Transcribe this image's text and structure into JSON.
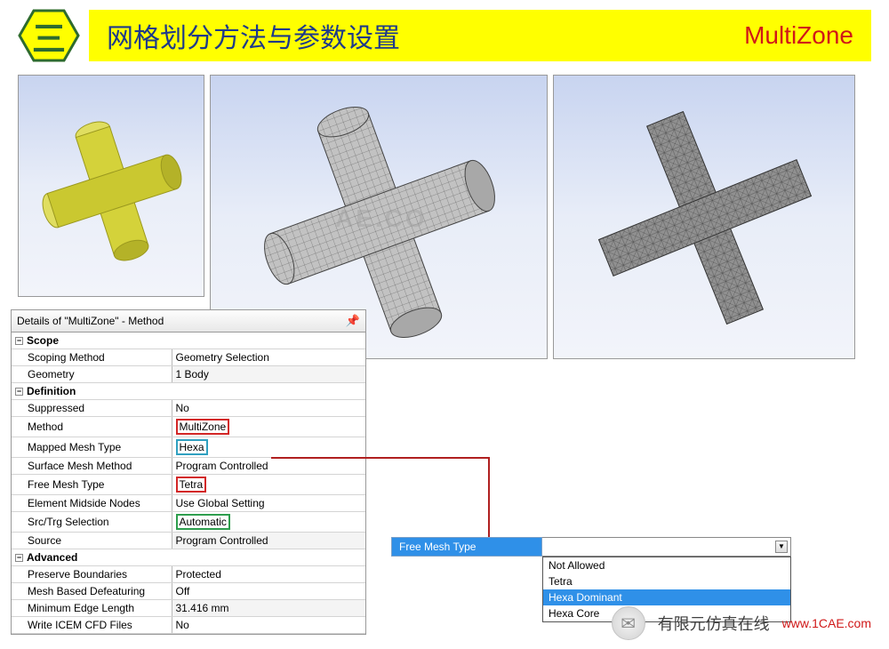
{
  "header": {
    "section_number": "三",
    "title": "网格划分方法与参数设置",
    "right_label": "MultiZone",
    "hex_fill": "#ffff00",
    "hex_stroke": "#2e6b2e",
    "title_bg": "#ffff00",
    "title_color": "#1e3a8a",
    "right_color": "#d01818"
  },
  "images": {
    "panel1": {
      "bg_top": "#c8d4f0",
      "bg_bot": "#f2f4fa",
      "shape_color": "#d4d23a"
    },
    "panel2": {
      "bg_top": "#c8d4f0",
      "bg_bot": "#f2f4fa",
      "shape_color": "#b8b8b8",
      "watermark": "AE.CO"
    },
    "panel3": {
      "bg_top": "#c8d4f0",
      "bg_bot": "#f2f4fa",
      "shape_color": "#8a8a8a"
    }
  },
  "details": {
    "title": "Details of \"MultiZone\" - Method",
    "sections": [
      {
        "name": "Scope",
        "rows": [
          {
            "label": "Scoping Method",
            "value": "Geometry Selection"
          },
          {
            "label": "Geometry",
            "value": "1 Body",
            "gray": true
          }
        ]
      },
      {
        "name": "Definition",
        "rows": [
          {
            "label": "Suppressed",
            "value": "No"
          },
          {
            "label": "Method",
            "value": "MultiZone",
            "hl": "red"
          },
          {
            "label": "Mapped Mesh Type",
            "value": "Hexa",
            "hl": "cyan"
          },
          {
            "label": "Surface Mesh Method",
            "value": "Program Controlled"
          },
          {
            "label": "Free Mesh Type",
            "value": "Tetra",
            "hl": "red"
          },
          {
            "label": "Element Midside Nodes",
            "value": "Use Global Setting"
          },
          {
            "label": "Src/Trg Selection",
            "value": "Automatic",
            "hl": "green"
          },
          {
            "label": "Source",
            "value": "Program Controlled",
            "gray": true
          }
        ]
      },
      {
        "name": "Advanced",
        "rows": [
          {
            "label": "Preserve Boundaries",
            "value": "Protected"
          },
          {
            "label": "Mesh Based Defeaturing",
            "value": "Off"
          },
          {
            "label": "Minimum Edge Length",
            "value": "31.416 mm",
            "gray": true
          },
          {
            "label": "Write ICEM CFD Files",
            "value": "No"
          }
        ]
      }
    ],
    "highlight_colors": {
      "red": "#d32626",
      "cyan": "#30a0c0",
      "green": "#2e9e4e"
    }
  },
  "dropdown": {
    "label": "Free Mesh Type",
    "options": [
      "Not Allowed",
      "Tetra",
      "Hexa Dominant",
      "Hexa Core"
    ],
    "selected": "Hexa Dominant",
    "label_bg": "#2f90e8",
    "label_color": "#ffffff",
    "sel_bg": "#2f90e8"
  },
  "footer": {
    "brand_cn": "有限元仿真在线",
    "url": "www.1CAE.com",
    "url_color": "#d01818"
  }
}
